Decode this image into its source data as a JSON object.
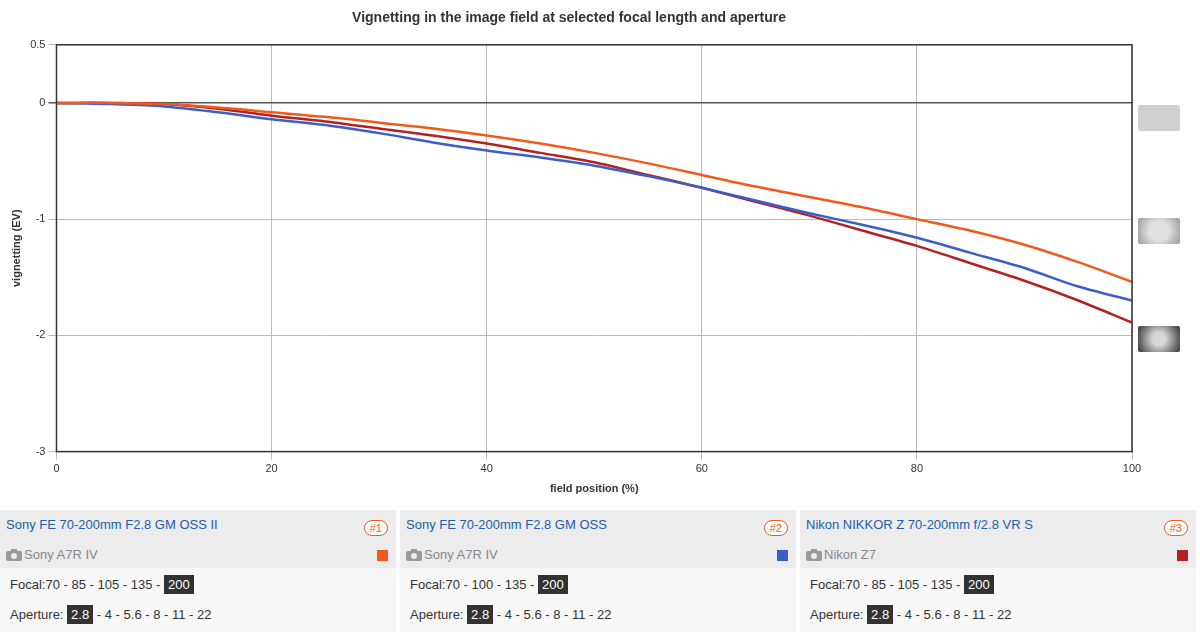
{
  "chart_data": {
    "type": "line",
    "title": "Vignetting in the image field at selected focal length and aperture",
    "x_label": "field position (%)",
    "y_label": "vignetting (EV)",
    "x": [
      0,
      5,
      10,
      15,
      20,
      25,
      30,
      35,
      40,
      45,
      50,
      55,
      60,
      65,
      70,
      75,
      80,
      85,
      90,
      95,
      100
    ],
    "xlim": [
      0,
      100
    ],
    "xticks": [
      0,
      20,
      40,
      60,
      80,
      100
    ],
    "ylim": [
      -3,
      0.5
    ],
    "yticks": [
      -3,
      -2,
      -1,
      0,
      0.5
    ],
    "grid": true,
    "series": [
      {
        "name": "Sony FE 70-200mm F2.8 GM OSS II",
        "number": "#1",
        "camera": "Sony A7R IV",
        "color": "#f05a1a",
        "values": [
          0,
          0,
          -0.01,
          -0.04,
          -0.08,
          -0.12,
          -0.17,
          -0.22,
          -0.28,
          -0.35,
          -0.43,
          -0.52,
          -0.62,
          -0.72,
          -0.81,
          -0.9,
          -1.0,
          -1.1,
          -1.22,
          -1.37,
          -1.54
        ],
        "focal_label": "Focal:",
        "focal_lengths": [
          70,
          85,
          105,
          135,
          200
        ],
        "selected_focal": 200,
        "aperture_label": "Aperture:",
        "apertures": [
          2.8,
          4,
          5.6,
          8,
          11,
          22
        ],
        "selected_aperture": 2.8
      },
      {
        "name": "Sony FE 70-200mm F2.8 GM OSS",
        "number": "#2",
        "camera": "Sony A7R IV",
        "color": "#3a5fcd",
        "values": [
          0,
          -0.01,
          -0.03,
          -0.08,
          -0.14,
          -0.19,
          -0.26,
          -0.34,
          -0.41,
          -0.47,
          -0.54,
          -0.63,
          -0.73,
          -0.84,
          -0.95,
          -1.05,
          -1.16,
          -1.29,
          -1.42,
          -1.58,
          -1.7
        ],
        "focal_label": "Focal:",
        "focal_lengths": [
          70,
          100,
          135,
          200
        ],
        "selected_focal": 200,
        "aperture_label": "Aperture:",
        "apertures": [
          2.8,
          4,
          5.6,
          8,
          11,
          22
        ],
        "selected_aperture": 2.8
      },
      {
        "name": "Nikon NIKKOR Z 70-200mm f/2.8 VR S",
        "number": "#3",
        "camera": "Nikon Z7",
        "color": "#b22222",
        "values": [
          0,
          0,
          -0.01,
          -0.05,
          -0.11,
          -0.16,
          -0.22,
          -0.28,
          -0.35,
          -0.43,
          -0.51,
          -0.62,
          -0.73,
          -0.85,
          -0.97,
          -1.1,
          -1.23,
          -1.38,
          -1.53,
          -1.7,
          -1.89
        ],
        "focal_label": "Focal:",
        "focal_lengths": [
          70,
          85,
          105,
          135,
          200
        ],
        "selected_focal": 200,
        "aperture_label": "Aperture:",
        "apertures": [
          2.8,
          4,
          5.6,
          8,
          11,
          22
        ],
        "selected_aperture": 2.8
      }
    ]
  }
}
